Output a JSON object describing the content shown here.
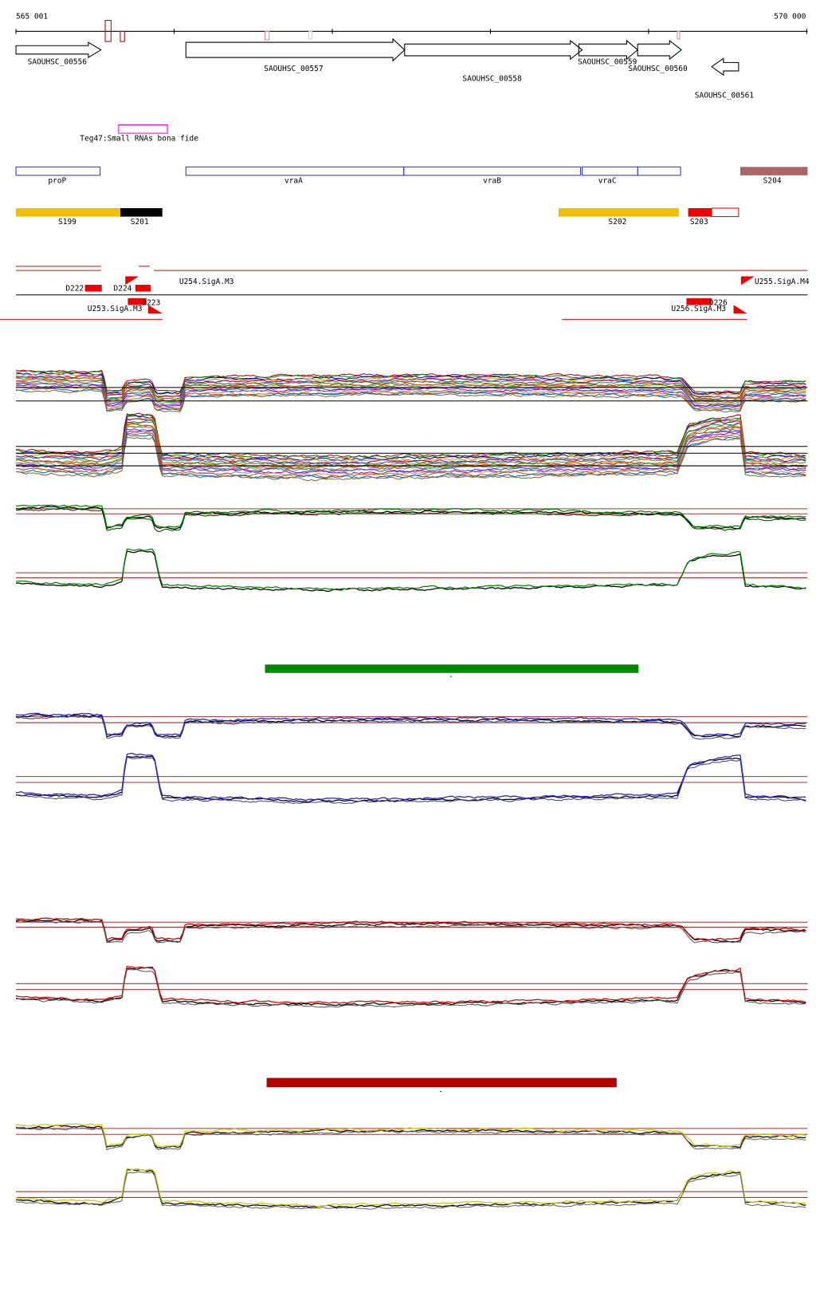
{
  "ruler": {
    "start": "565 001",
    "end": "570 000"
  },
  "genes": [
    "SAOUHSC_00556",
    "SAOUHSC_00557",
    "SAOUHSC_00558",
    "SAOUHSC_00559",
    "SAOUHSC_00560",
    "SAOUHSC_00561"
  ],
  "srna": "Teg47:Small RNAs bona fide",
  "operons": [
    "proP",
    "vraA",
    "vraB",
    "vraC",
    "S204"
  ],
  "segments": [
    "S199",
    "S201",
    "S202",
    "S203"
  ],
  "sites": [
    "D222",
    "D224",
    "D223",
    "U254.SigA.M3",
    "U255.SigA.M4",
    "U253.SigA.M3",
    "U256.SigA.M3",
    "D226"
  ],
  "bars": [
    "-",
    "-"
  ]
}
